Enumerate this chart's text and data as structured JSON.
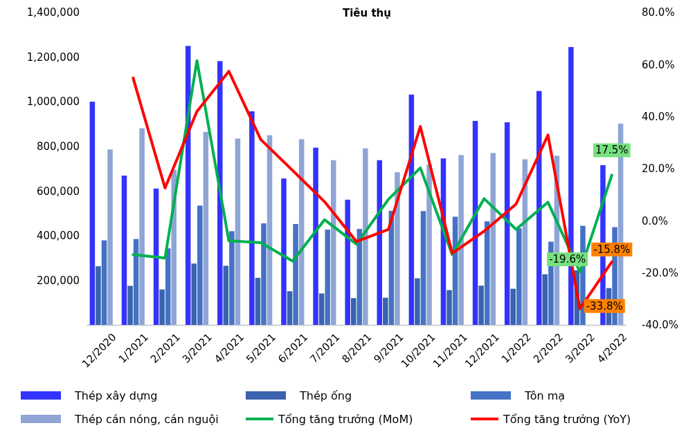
{
  "chart_data": {
    "type": "bar",
    "title": "Tiêu thụ",
    "categories": [
      "12/2020",
      "1/2021",
      "2/2021",
      "3/2021",
      "4/2021",
      "5/2021",
      "6/2021",
      "7/2021",
      "8/2021",
      "9/2021",
      "10/2021",
      "11/2021",
      "12/2021",
      "1/2022",
      "2/2022",
      "3/2022",
      "4/2022"
    ],
    "series": [
      {
        "name": "Thép xây dựng",
        "color": "#3333ff",
        "values": [
          1000000,
          669000,
          611000,
          1250000,
          1182000,
          957000,
          656000,
          794000,
          561000,
          738000,
          1032000,
          746000,
          914000,
          908000,
          1048000,
          1245000,
          716000
        ]
      },
      {
        "name": "Thép ống",
        "color": "#3a62ae",
        "values": [
          263000,
          175000,
          159000,
          275000,
          265000,
          211000,
          151000,
          141000,
          120000,
          122000,
          209000,
          156000,
          176000,
          162000,
          227000,
          245000,
          165000
        ]
      },
      {
        "name": "Tôn mạ",
        "color": "#4472c4",
        "values": [
          379000,
          385000,
          343000,
          535000,
          420000,
          455000,
          452000,
          427000,
          430000,
          511000,
          510000,
          485000,
          464000,
          433000,
          373000,
          444000,
          438000
        ]
      },
      {
        "name": "Thép cán nóng, cán nguội",
        "color": "#8fa5d6",
        "values": [
          786000,
          881000,
          695000,
          865000,
          835000,
          850000,
          832000,
          738000,
          791000,
          684000,
          719000,
          761000,
          770000,
          742000,
          758000,
          null,
          902000
        ]
      },
      {
        "name": "Tổng tăng trưởng (MoM)",
        "type": "line",
        "axis": "y2",
        "color": "#00b050",
        "values": [
          null,
          -13.0,
          -14.3,
          61.5,
          -7.7,
          -8.4,
          -15.5,
          0.4,
          -9.0,
          8.2,
          20.3,
          -13.0,
          8.5,
          -3.3,
          7.1,
          -19.6,
          17.5
        ],
        "value_labels": [
          null,
          null,
          null,
          null,
          null,
          null,
          null,
          null,
          null,
          null,
          null,
          null,
          null,
          null,
          null,
          "-19.6%",
          "17.5%"
        ]
      },
      {
        "name": "Tổng tăng trưởng (YoY)",
        "type": "line",
        "axis": "y2",
        "color": "#ff0000",
        "values": [
          null,
          54.8,
          12.6,
          42.0,
          57.4,
          31.2,
          19.3,
          7.3,
          -8.0,
          -3.3,
          36.2,
          -12.5,
          -4.0,
          6.4,
          32.9,
          -33.8,
          -15.8
        ],
        "value_labels": [
          null,
          null,
          null,
          null,
          null,
          null,
          null,
          null,
          null,
          null,
          null,
          null,
          null,
          null,
          null,
          "-33.8%",
          "-15.8%"
        ]
      }
    ],
    "ylim": [
      0,
      1400000
    ],
    "yticks": [
      {
        "value": 0,
        "label": null
      },
      {
        "value": 200000,
        "label": "200,000"
      },
      {
        "value": 400000,
        "label": "400,000"
      },
      {
        "value": 600000,
        "label": "600,000"
      },
      {
        "value": 800000,
        "label": "800,000"
      },
      {
        "value": 1000000,
        "label": "1,000,000"
      },
      {
        "value": 1200000,
        "label": "1,200,000"
      },
      {
        "value": 1400000,
        "label": "1,400,000"
      }
    ],
    "y2lim": [
      -40,
      80
    ],
    "y2ticks": [
      {
        "value": -40,
        "label": "-40.0%"
      },
      {
        "value": -20,
        "label": "-20.0%"
      },
      {
        "value": 0,
        "label": "0.0%"
      },
      {
        "value": 20,
        "label": "20.0%"
      },
      {
        "value": 40,
        "label": "40.0%"
      },
      {
        "value": 60,
        "label": "60.0%"
      },
      {
        "value": 80,
        "label": "80.0%"
      }
    ],
    "grid": false,
    "legend": "bottom",
    "line_style": "solid",
    "marker": "none"
  }
}
